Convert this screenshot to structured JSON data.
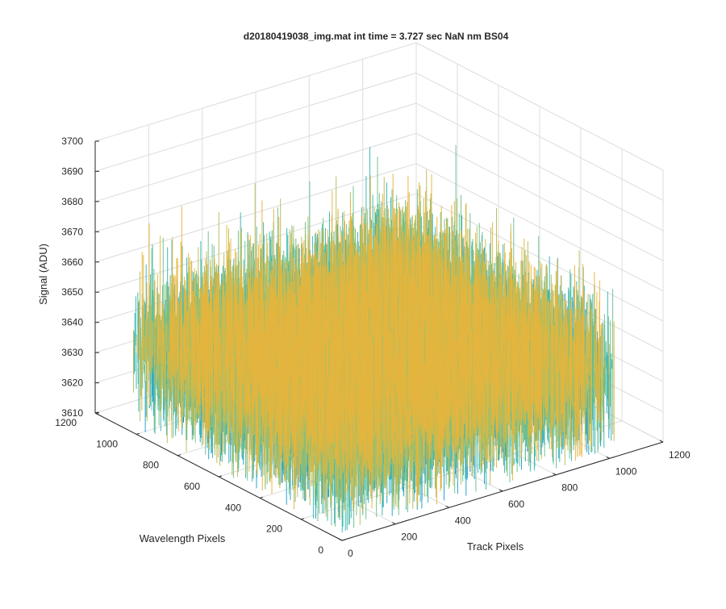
{
  "chart_data": {
    "type": "surface",
    "title": "d20180419038_img.mat int time = 3.727 sec  NaN nm BS04",
    "xlabel": "Track Pixels",
    "ylabel": "Wavelength Pixels",
    "zlabel": "Signal (ADU)",
    "xlim": [
      0,
      1200
    ],
    "ylim": [
      0,
      1200
    ],
    "zlim": [
      3610,
      3700
    ],
    "x_ticks": [
      "0",
      "200",
      "400",
      "600",
      "800",
      "1000",
      "1200"
    ],
    "y_ticks": [
      "0",
      "200",
      "400",
      "600",
      "800",
      "1000",
      "1200"
    ],
    "z_ticks": [
      "3610",
      "3620",
      "3630",
      "3640",
      "3650",
      "3660",
      "3670",
      "3680",
      "3690",
      "3700"
    ],
    "grid": true,
    "data_extent": {
      "track_pixels": [
        0,
        1024
      ],
      "wavelength_pixels": [
        0,
        1024
      ]
    },
    "signal_summary": {
      "mean": 3645,
      "min": 3612,
      "max": 3692
    },
    "colormap": [
      "#0072bd",
      "#1a9fd0",
      "#35b6b2",
      "#6cc08f",
      "#b7bd5a",
      "#e6b43c"
    ]
  }
}
